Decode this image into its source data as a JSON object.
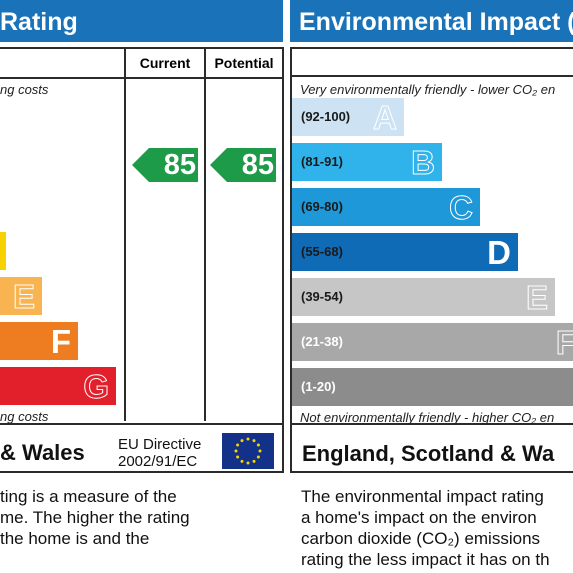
{
  "energy": {
    "title": "Rating",
    "col_current": "Current",
    "col_potential": "Potential",
    "note_top": "ng costs",
    "note_bottom": "ng costs",
    "bands": [
      {
        "letter": "",
        "color": "#f8d100"
      },
      {
        "letter": "E",
        "color": "#f8b450"
      },
      {
        "letter": "F",
        "color": "#ee7d22"
      },
      {
        "letter": "G",
        "color": "#e2202c"
      }
    ],
    "current_value": "85",
    "potential_value": "85",
    "arrow_color": "#1e9b48",
    "footer_region": "& Wales",
    "eu_line1": "EU Directive",
    "eu_line2": "2002/91/EC",
    "desc_lines": [
      "ting is a measure of the",
      "me. The higher the rating",
      "the home is and the"
    ]
  },
  "environment": {
    "title": "Environmental Impact (",
    "note_top": "Very environmentally friendly - lower CO₂ en",
    "note_bottom": "Not environmentally friendly - higher CO₂ en",
    "bands": [
      {
        "range": "(92-100)",
        "letter": "A",
        "color": "#cde3f3",
        "dark": true
      },
      {
        "range": "(81-91)",
        "letter": "B",
        "color": "#30b3ea",
        "dark": true
      },
      {
        "range": "(69-80)",
        "letter": "C",
        "color": "#1e98d8",
        "dark": true
      },
      {
        "range": "(55-68)",
        "letter": "D",
        "color": "#0f6bb6",
        "dark": true
      },
      {
        "range": "(39-54)",
        "letter": "E",
        "color": "#c6c6c6",
        "dark": true
      },
      {
        "range": "(21-38)",
        "letter": "F",
        "color": "#a8a8a8",
        "dark": false
      },
      {
        "range": "(1-20)",
        "letter": "",
        "color": "#8c8c8c",
        "dark": false
      }
    ],
    "footer_region": "England, Scotland & Wa",
    "desc_lines": [
      "The environmental impact rating",
      "a home's impact on the environ",
      "carbon dioxide (CO₂) emissions",
      "rating the less impact it has on th"
    ]
  }
}
